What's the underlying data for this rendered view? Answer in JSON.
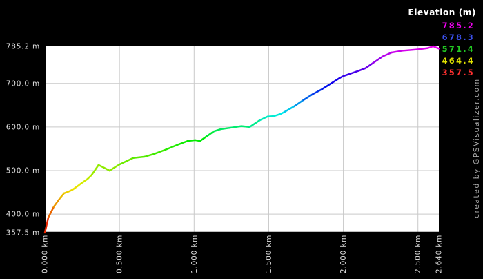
{
  "credit": "created by GPSVisualizer.com",
  "colors": {
    "background": "#000000",
    "plot_background": "#ffffff",
    "grid": "#c9c9c9",
    "axis_line": "#000000",
    "axis_text": "#dedede",
    "legend_title": "#ffffff",
    "credit_text": "#a8a8a8"
  },
  "legend": {
    "title": "Elevation (m)",
    "entries": [
      {
        "label": "785.2",
        "color": "#ee00ee"
      },
      {
        "label": "678.3",
        "color": "#3a4fe8"
      },
      {
        "label": "571.4",
        "color": "#22c822"
      },
      {
        "label": "464.4",
        "color": "#e0e000"
      },
      {
        "label": "357.5",
        "color": "#ff3030"
      }
    ]
  },
  "chart_data": {
    "type": "line",
    "title": "Elevation (m)",
    "x_unit": "km",
    "y_unit": "m",
    "xlim": [
      0.0,
      2.64
    ],
    "ylim": [
      357.5,
      785.2
    ],
    "grid": true,
    "legend_position": "top-right",
    "color_scale": "rainbow: red at min elevation to magenta at max elevation",
    "x_ticks": [
      {
        "label": "0.000 km",
        "km": 0.0
      },
      {
        "label": "0.500 km",
        "km": 0.5
      },
      {
        "label": "1.000 km",
        "km": 1.0
      },
      {
        "label": "1.500 km",
        "km": 1.5
      },
      {
        "label": "2.000 km",
        "km": 2.0
      },
      {
        "label": "2.500 km",
        "km": 2.5
      },
      {
        "label": "2.640 km",
        "km": 2.64
      }
    ],
    "y_ticks": [
      {
        "label": "785.2 m",
        "m": 785.2
      },
      {
        "label": "700.0 m",
        "m": 700.0
      },
      {
        "label": "600.0 m",
        "m": 600.0
      },
      {
        "label": "500.0 m",
        "m": 500.0
      },
      {
        "label": "400.0 m",
        "m": 400.0
      },
      {
        "label": "357.5 m",
        "m": 357.5
      }
    ],
    "x_gridlines_km": [
      0.5,
      1.0,
      1.5,
      2.0,
      2.5
    ],
    "y_gridlines_m": [
      400,
      500,
      600,
      700
    ],
    "points": [
      [
        0.0,
        357.5
      ],
      [
        0.023,
        392
      ],
      [
        0.06,
        417
      ],
      [
        0.102,
        437
      ],
      [
        0.129,
        448
      ],
      [
        0.153,
        451
      ],
      [
        0.185,
        456
      ],
      [
        0.222,
        465
      ],
      [
        0.245,
        471
      ],
      [
        0.287,
        481
      ],
      [
        0.314,
        490
      ],
      [
        0.36,
        513
      ],
      [
        0.434,
        500
      ],
      [
        0.499,
        514
      ],
      [
        0.592,
        529
      ],
      [
        0.67,
        532
      ],
      [
        0.73,
        538
      ],
      [
        0.809,
        548
      ],
      [
        0.887,
        559
      ],
      [
        0.957,
        568
      ],
      [
        1.007,
        570
      ],
      [
        1.04,
        568
      ],
      [
        1.086,
        579
      ],
      [
        1.132,
        590
      ],
      [
        1.178,
        595
      ],
      [
        1.238,
        598
      ],
      [
        1.317,
        602
      ],
      [
        1.372,
        600
      ],
      [
        1.442,
        616
      ],
      [
        1.493,
        624
      ],
      [
        1.534,
        625
      ],
      [
        1.58,
        630
      ],
      [
        1.608,
        635
      ],
      [
        1.673,
        648
      ],
      [
        1.733,
        662
      ],
      [
        1.793,
        675
      ],
      [
        1.858,
        687
      ],
      [
        1.918,
        700
      ],
      [
        1.978,
        713
      ],
      [
        2.001,
        717
      ],
      [
        2.043,
        722
      ],
      [
        2.103,
        729
      ],
      [
        2.149,
        735
      ],
      [
        2.195,
        746
      ],
      [
        2.264,
        762
      ],
      [
        2.324,
        771
      ],
      [
        2.394,
        775
      ],
      [
        2.5,
        778
      ],
      [
        2.565,
        781
      ],
      [
        2.602,
        785.2
      ],
      [
        2.64,
        780
      ]
    ]
  }
}
